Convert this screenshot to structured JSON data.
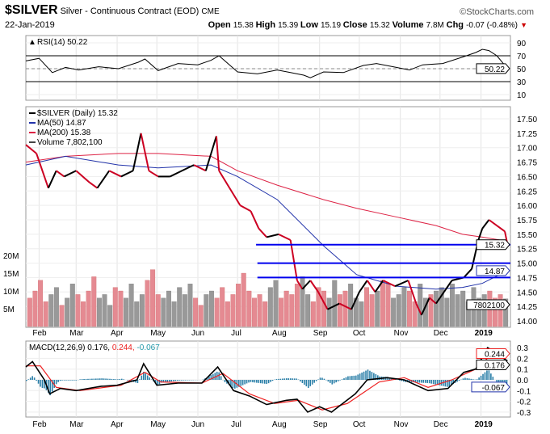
{
  "header": {
    "symbol": "$SILVER",
    "name": "Silver - Continuous Contract (EOD)",
    "exchange": "CME",
    "date": "22-Jan-2019",
    "brand": "©StockCharts.com",
    "quote": [
      {
        "k": "Open",
        "v": "15.38"
      },
      {
        "k": "High",
        "v": "15.39"
      },
      {
        "k": "Low",
        "v": "15.19"
      },
      {
        "k": "Close",
        "v": "15.32"
      },
      {
        "k": "Volume",
        "v": "7.8M"
      },
      {
        "k": "Chg",
        "v": "-0.07 (-0.48%)"
      }
    ]
  },
  "colors": {
    "up": "#000000",
    "down": "#cc0022",
    "ma50": "#2233aa",
    "ma200": "#dd2244",
    "level": "#0000ee",
    "macd": "#000000",
    "signal": "#ee2222",
    "hist": "#2a7fa8",
    "volUp": "#999999",
    "volDown": "#e58a92"
  },
  "chart_data": [
    {
      "type": "line",
      "panel": "RSI",
      "legend": "RSI(14) 50.22",
      "last_label": "50.22",
      "ylim": [
        0,
        100
      ],
      "ticks": [
        "90",
        "70",
        "50",
        "30",
        "10"
      ],
      "tick_values": [
        90,
        70,
        50,
        30,
        10
      ],
      "ref_lines": [
        70,
        30
      ],
      "x_start": "2018-01-22",
      "x_days": [
        0,
        10,
        20,
        30,
        40,
        55,
        70,
        85,
        90,
        100,
        115,
        130,
        140,
        146,
        160,
        175,
        190,
        200,
        210,
        215,
        225,
        240,
        255,
        265,
        280,
        290,
        300,
        315,
        330,
        340,
        345,
        350,
        356,
        364
      ],
      "values": [
        62,
        66,
        44,
        52,
        48,
        53,
        50,
        60,
        65,
        47,
        58,
        56,
        63,
        70,
        45,
        42,
        48,
        44,
        40,
        36,
        45,
        44,
        55,
        58,
        52,
        48,
        56,
        58,
        68,
        75,
        80,
        78,
        70,
        50.22
      ]
    },
    {
      "type": "line",
      "panel": "Price",
      "ylim": [
        14.0,
        17.5
      ],
      "ticks": [
        "17.50",
        "17.25",
        "17.00",
        "16.75",
        "16.50",
        "16.25",
        "16.00",
        "15.75",
        "15.50",
        "15.25",
        "15.00",
        "14.75",
        "14.50",
        "14.25",
        "14.00"
      ],
      "legend": [
        {
          "text": "$SILVER (Daily) 15.32",
          "color": "#000000"
        },
        {
          "text": "MA(50) 14.87",
          "color": "#2233aa"
        },
        {
          "text": "MA(200) 15.38",
          "color": "#dd2244"
        },
        {
          "text": "Volume 7,802,100",
          "color": "#444444"
        }
      ],
      "x_start": "2018-01-22",
      "price_days": [
        0,
        8,
        17,
        23,
        29,
        38,
        48,
        54,
        63,
        72,
        81,
        87,
        93,
        100,
        109,
        118,
        127,
        136,
        140,
        144,
        146,
        154,
        162,
        170,
        176,
        182,
        191,
        200,
        205,
        209,
        215,
        221,
        228,
        237,
        246,
        252,
        258,
        264,
        270,
        279,
        289,
        295,
        299,
        305,
        310,
        316,
        322,
        331,
        337,
        342,
        345,
        350,
        356,
        362,
        364
      ],
      "price": [
        17.05,
        16.9,
        16.3,
        16.6,
        16.5,
        16.6,
        16.4,
        16.3,
        16.6,
        16.5,
        16.6,
        17.25,
        16.6,
        16.5,
        16.5,
        16.6,
        16.7,
        16.6,
        16.9,
        17.2,
        16.6,
        16.3,
        16.0,
        15.9,
        15.6,
        15.45,
        15.5,
        15.4,
        14.7,
        14.55,
        14.7,
        14.5,
        14.2,
        14.3,
        14.2,
        14.5,
        14.7,
        14.5,
        14.7,
        14.6,
        14.7,
        14.3,
        14.1,
        14.4,
        14.3,
        14.5,
        14.7,
        14.75,
        14.9,
        15.4,
        15.6,
        15.75,
        15.65,
        15.55,
        15.32
      ],
      "ma_days": [
        0,
        30,
        70,
        100,
        140,
        160,
        190,
        225,
        250,
        280,
        310,
        330,
        345,
        364
      ],
      "ma200": [
        16.75,
        16.85,
        16.9,
        16.9,
        16.85,
        16.6,
        16.35,
        16.1,
        15.95,
        15.8,
        15.65,
        15.5,
        15.45,
        15.38
      ],
      "ma50": [
        16.7,
        16.85,
        16.7,
        16.65,
        16.7,
        16.5,
        16.1,
        15.3,
        14.8,
        14.6,
        14.55,
        14.58,
        14.65,
        14.87
      ],
      "levels": [
        {
          "value": 15.32,
          "label": "15.32",
          "start_day": 174
        },
        {
          "value": 15.0,
          "label": "15.00",
          "start_day": 175
        },
        {
          "value": 14.75,
          "label": "14.75",
          "start_day": 175
        }
      ],
      "ma50_label": "14.87",
      "ma200_label": "15.38",
      "vol_label": "7802100",
      "volume_ticks": [
        "20M",
        "15M",
        "10M",
        "5M"
      ],
      "volume_tick_values": [
        20,
        15,
        10,
        5
      ],
      "volume_m": [
        8,
        10,
        13,
        7,
        9,
        11,
        6,
        8,
        12,
        9,
        7,
        10,
        14,
        8,
        9,
        6,
        11,
        10,
        8,
        12,
        7,
        9,
        13,
        16,
        9,
        8,
        10,
        7,
        11,
        9,
        12,
        8,
        6,
        9,
        10,
        8,
        11,
        7,
        9,
        12,
        15,
        10,
        8,
        9,
        7,
        11,
        13,
        8,
        10,
        9,
        12,
        14,
        9,
        7,
        11,
        10,
        8,
        13,
        9,
        10,
        12,
        8,
        7,
        11,
        9,
        10,
        13,
        12,
        8,
        9,
        11,
        10,
        7,
        12,
        8,
        9,
        10,
        11,
        8,
        12,
        9,
        10,
        7,
        11,
        8,
        9,
        10,
        8,
        9,
        7.8
      ]
    },
    {
      "type": "line",
      "panel": "MACD",
      "legend_prefix": "MACD(12,26,9) ",
      "legend_macd": "0.176, ",
      "legend_signal": "0.244, ",
      "legend_hist": "-0.067",
      "ylim": [
        -0.35,
        0.35
      ],
      "ticks": [
        "0.3",
        "0.2",
        "0.1",
        "0.0",
        "-0.1",
        "-0.2",
        "-0.3"
      ],
      "tick_values": [
        0.3,
        0.2,
        0.1,
        0,
        -0.1,
        -0.2,
        -0.3
      ],
      "labels": {
        "macd": "0.176",
        "signal": "0.244",
        "hist": "-0.067"
      },
      "x_start": "2018-01-22",
      "macd_days": [
        0,
        5,
        14,
        18,
        26,
        38,
        57,
        69,
        84,
        89,
        99,
        115,
        133,
        145,
        157,
        169,
        182,
        197,
        205,
        213,
        222,
        231,
        249,
        258,
        273,
        286,
        304,
        319,
        331,
        340,
        349,
        364
      ],
      "macd": [
        0.12,
        0.17,
        0.0,
        -0.13,
        -0.08,
        -0.1,
        -0.06,
        -0.05,
        0.0,
        0.15,
        -0.05,
        -0.03,
        -0.03,
        0.12,
        -0.1,
        -0.15,
        -0.23,
        -0.19,
        -0.18,
        -0.3,
        -0.25,
        -0.3,
        -0.13,
        0.0,
        0.02,
        0.0,
        -0.1,
        -0.08,
        0.07,
        0.1,
        0.3,
        0.176
      ],
      "signal_days": [
        0,
        11,
        23,
        41,
        72,
        90,
        102,
        133,
        149,
        169,
        188,
        206,
        224,
        243,
        267,
        286,
        304,
        322,
        340,
        355,
        364
      ],
      "signal": [
        0.13,
        0.13,
        -0.07,
        -0.1,
        -0.05,
        0.07,
        -0.02,
        -0.03,
        0.06,
        -0.13,
        -0.22,
        -0.19,
        -0.28,
        -0.22,
        -0.02,
        0.02,
        -0.07,
        0.0,
        0.1,
        0.27,
        0.244
      ]
    },
    {
      "type": "axis",
      "months": [
        "Feb",
        "Mar",
        "Apr",
        "May",
        "Jun",
        "Jul",
        "Aug",
        "Sep",
        "Oct",
        "Nov",
        "Dec",
        "2019"
      ],
      "month_days": [
        10,
        38,
        69,
        99,
        130,
        160,
        191,
        222,
        252,
        283,
        313,
        344
      ]
    }
  ]
}
